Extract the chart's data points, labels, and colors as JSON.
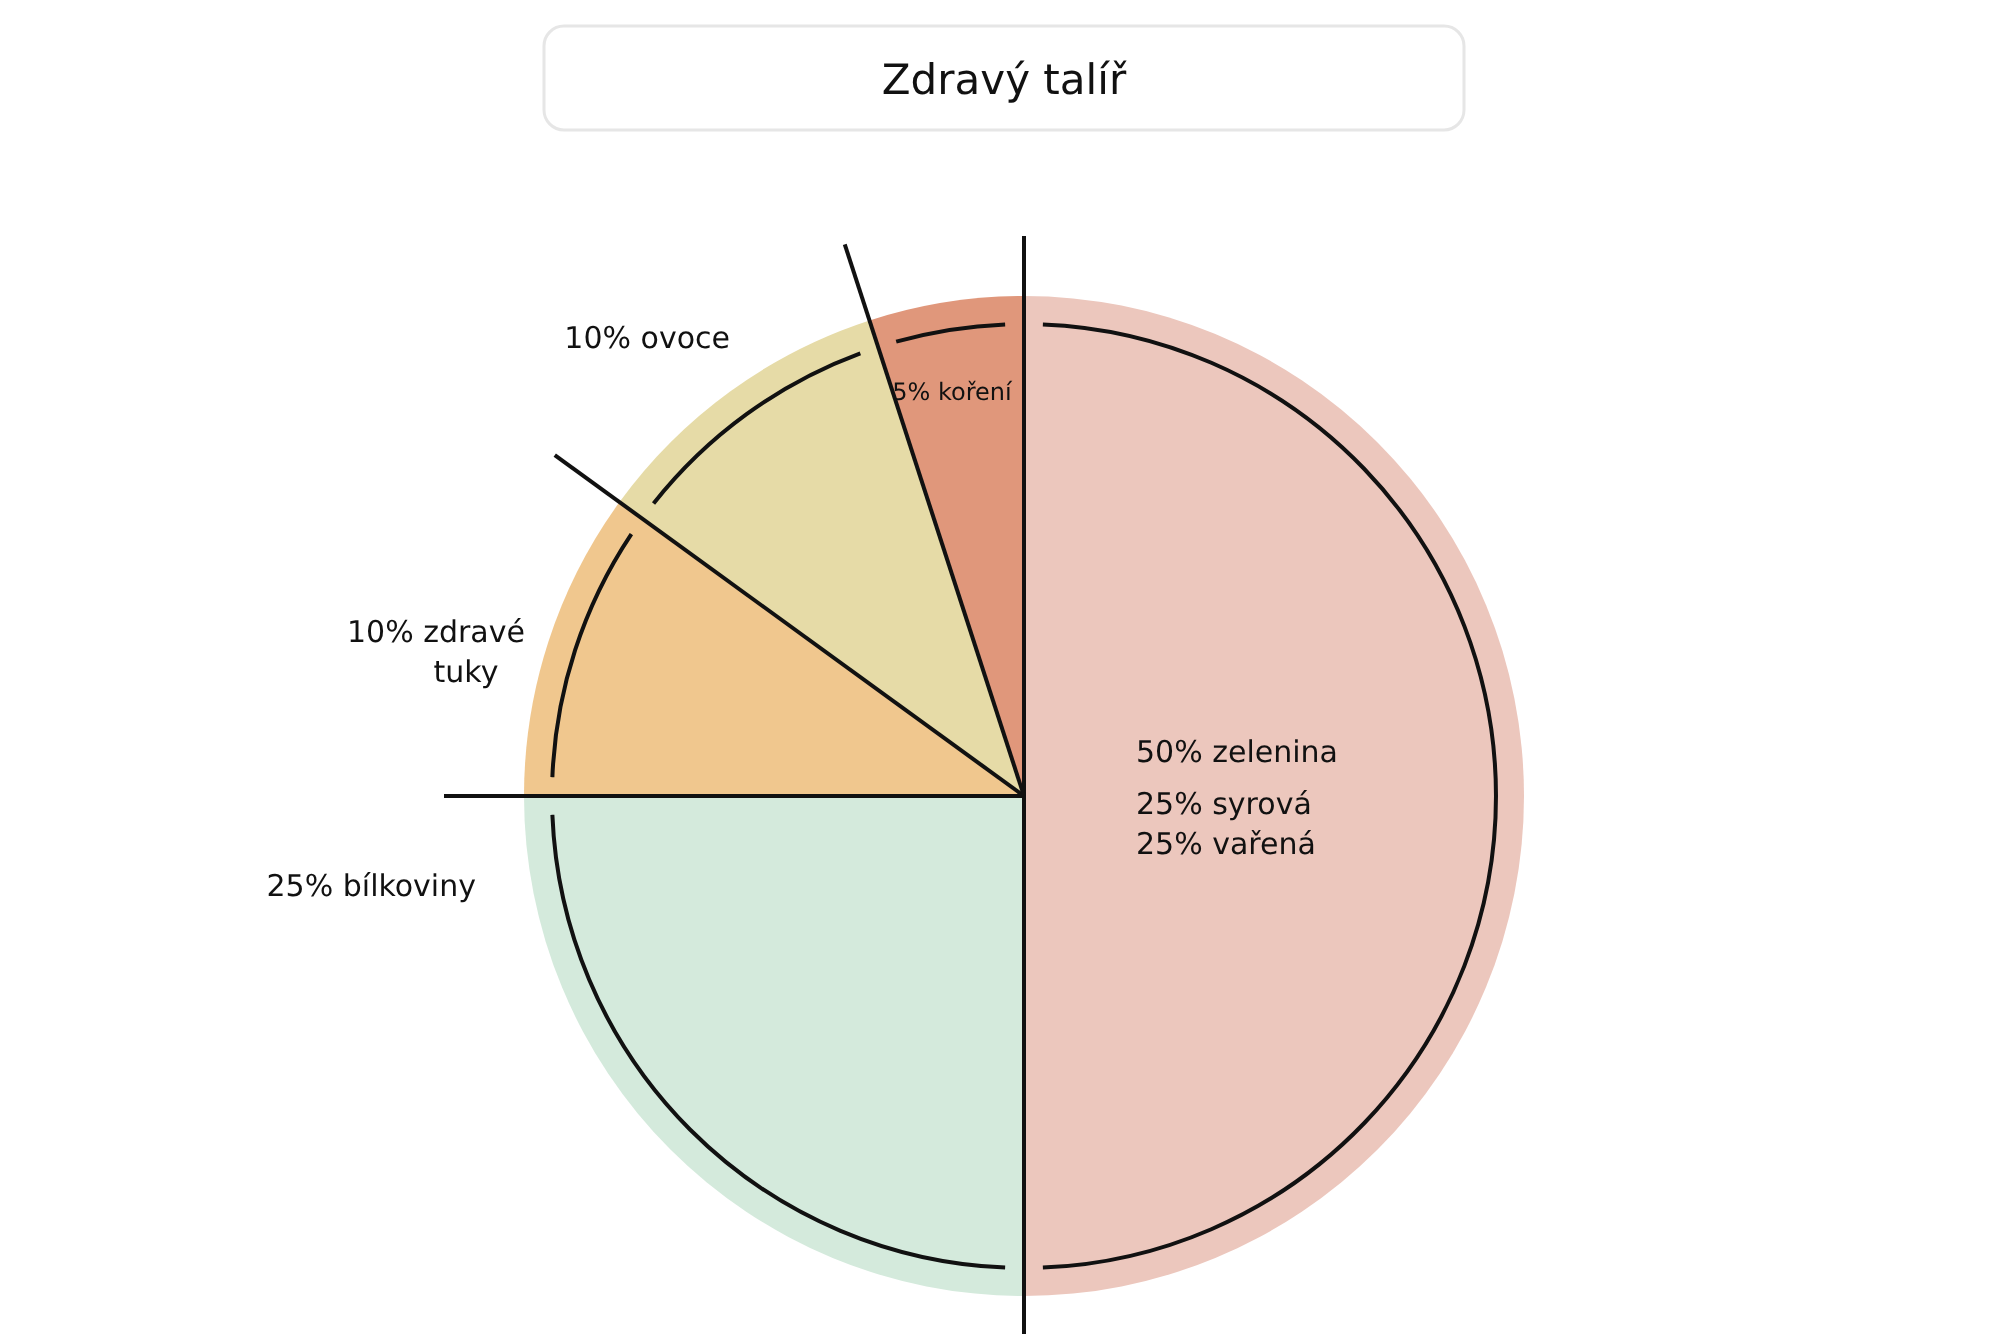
{
  "chart_data": {
    "type": "pie",
    "title": "Zdravý talíř",
    "categories": [
      "50% zelenina",
      "25% bílkoviny",
      "10% zdravé tuky",
      "10% ovoce",
      "5% koření"
    ],
    "values": [
      50,
      25,
      10,
      10,
      5
    ],
    "colors": [
      "#ecc7bd",
      "#d4eadc",
      "#f0c78e",
      "#e6dba7",
      "#e0977b"
    ],
    "annotations": [
      "25% syrová",
      "25% vařená"
    ]
  }
}
